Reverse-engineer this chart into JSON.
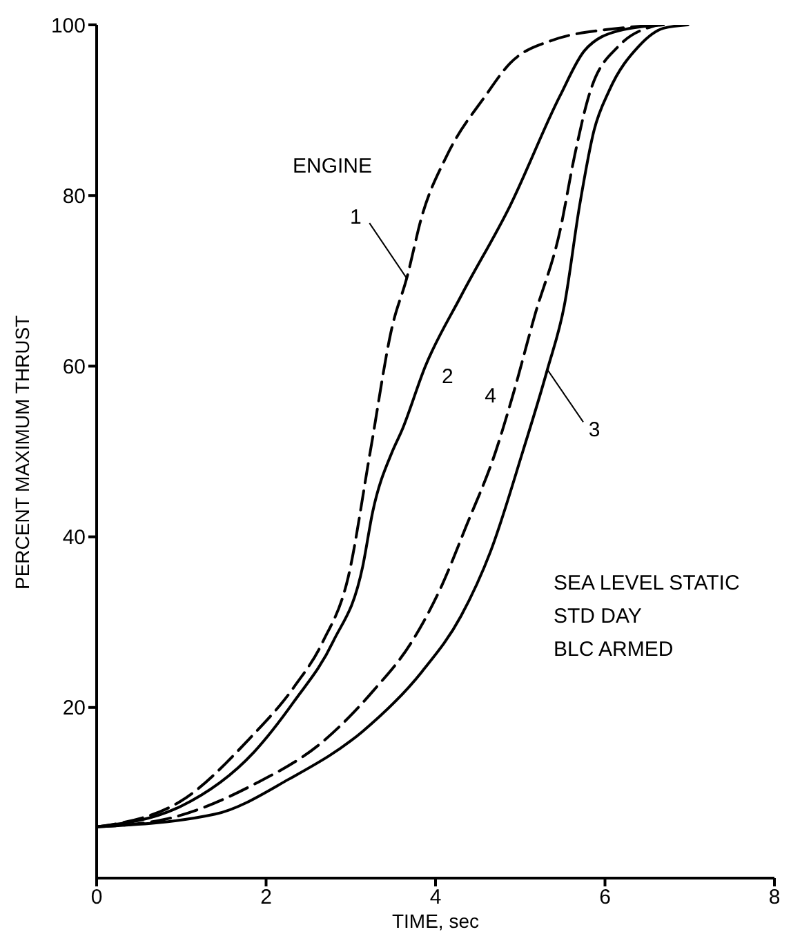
{
  "chart_data": {
    "type": "line",
    "xlabel": "TIME, sec",
    "ylabel": "PERCENT MAXIMUM THRUST",
    "xlim": [
      0,
      8
    ],
    "ylim": [
      0,
      100
    ],
    "xticks": [
      0,
      2,
      4,
      6,
      8
    ],
    "yticks": [
      20,
      40,
      60,
      80,
      100
    ],
    "grid": false,
    "legend": false,
    "marker": "none",
    "annotations": [
      "ENGINE",
      "SEA LEVEL STATIC",
      "STD DAY",
      "BLC ARMED"
    ],
    "series": [
      {
        "name": "1",
        "color": "#000000",
        "line_style": "dashed",
        "x": [
          0,
          0.99,
          1.8,
          2.33,
          2.67,
          2.97,
          3.23,
          3.49,
          3.66,
          3.84,
          4.13,
          4.59,
          4.88,
          5.35,
          6.16,
          6.69
        ],
        "values": [
          6,
          9,
          16.3,
          22.4,
          27.7,
          35.3,
          50,
          64.7,
          70.3,
          77.6,
          84.6,
          91.7,
          95.5,
          98.1,
          99.6,
          100
        ]
      },
      {
        "name": "2",
        "color": "#000000",
        "line_style": "solid",
        "x": [
          0,
          0.99,
          1.86,
          2.33,
          2.79,
          3.14,
          3.26,
          3.49,
          3.6,
          3.88,
          4.3,
          4.88,
          5.47,
          5.76,
          6.16,
          6.69
        ],
        "values": [
          6,
          8.4,
          14.8,
          20.7,
          27.7,
          36.5,
          43,
          50,
          52.4,
          60,
          68.2,
          78.8,
          91.7,
          97,
          99.3,
          100
        ]
      },
      {
        "name": "3",
        "color": "#000000",
        "line_style": "solid",
        "x": [
          0,
          1.4,
          2.27,
          3.14,
          3.84,
          4.3,
          4.65,
          5.03,
          5.32,
          5.52,
          5.7,
          5.87,
          6.05,
          6.4,
          6.69,
          6.98
        ],
        "values": [
          6,
          7.5,
          11.6,
          17.2,
          24.2,
          30.7,
          38.3,
          50,
          59.6,
          67.1,
          78.8,
          87.6,
          92.3,
          97.5,
          99.6,
          100
        ]
      },
      {
        "name": "4",
        "color": "#000000",
        "line_style": "dashed",
        "x": [
          0,
          0.81,
          1.86,
          2.67,
          3.26,
          3.72,
          4.07,
          4.36,
          4.71,
          4.91,
          5.17,
          5.47,
          5.64,
          5.81,
          6.16,
          6.63
        ],
        "values": [
          6,
          6.9,
          11,
          16,
          21.9,
          27.7,
          34.2,
          41.2,
          50,
          56.5,
          65.9,
          75.9,
          84.6,
          91.7,
          97.5,
          100
        ]
      }
    ]
  }
}
